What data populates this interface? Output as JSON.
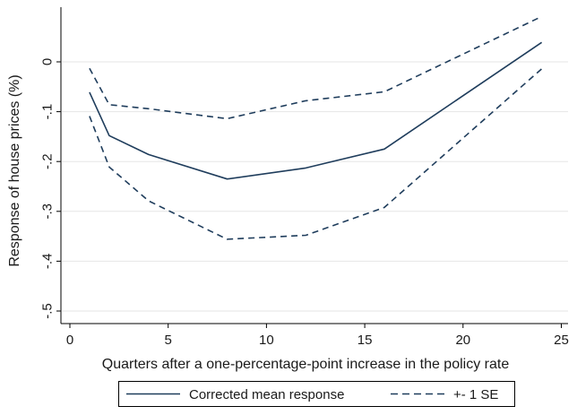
{
  "chart_data": {
    "type": "line",
    "xlabel": "Quarters after a one-percentage-point increase in the policy rate",
    "ylabel": "Response of house prices (%)",
    "xlim": [
      0,
      25
    ],
    "ylim": [
      -0.5,
      0.1
    ],
    "xticks": [
      0,
      5,
      10,
      15,
      20,
      25
    ],
    "yticks": [
      0,
      -0.1,
      -0.2,
      -0.3,
      -0.4,
      -0.5
    ],
    "ytick_labels": [
      "0",
      "-.1",
      "-.2",
      "-.3",
      "-.4",
      "-.5"
    ],
    "grid": "horizontal",
    "legend_position": "bottom",
    "colors": {
      "line": "#1f3d5c",
      "grid": "#e6e6e6",
      "axis": "#000000"
    },
    "series": [
      {
        "name": "Corrected mean response",
        "style": "solid",
        "x": [
          1,
          2,
          4,
          8,
          12,
          16,
          24
        ],
        "y": [
          -0.061,
          -0.148,
          -0.186,
          -0.235,
          -0.213,
          -0.175,
          0.039
        ]
      },
      {
        "name": "+- 1 SE",
        "style": "dashed",
        "x": [
          1,
          2,
          4,
          8,
          12,
          16,
          24
        ],
        "y": [
          -0.013,
          -0.086,
          -0.094,
          -0.114,
          -0.078,
          -0.06,
          0.091
        ]
      },
      {
        "style": "dashed",
        "x": [
          1,
          2,
          4,
          8,
          12,
          16,
          24
        ],
        "y": [
          -0.109,
          -0.211,
          -0.279,
          -0.356,
          -0.348,
          -0.292,
          -0.014
        ]
      }
    ]
  }
}
